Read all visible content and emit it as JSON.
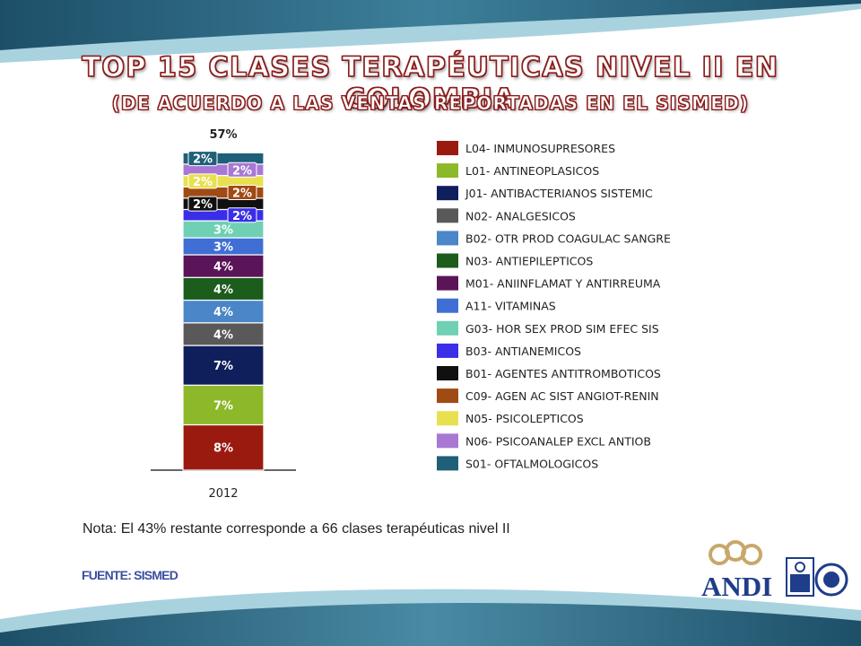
{
  "title": "TOP 15 CLASES TERAPÉUTICAS NIVEL II EN COLOMBIA",
  "subtitle": "(DE ACUERDO A LAS VENTAS REPORTADAS EN EL SISMED)",
  "note": "Nota:  El 43% restante corresponde a 66 clases terapéuticas nivel II",
  "source": "FUENTE: SISMED",
  "logo": {
    "text": "ANDI"
  },
  "colors": {
    "title_stroke": "#8c1c1c",
    "band_dark": "#2b5f78",
    "band_light": "#8fc3d4"
  },
  "chart_data": {
    "type": "bar",
    "stacked": true,
    "categories": [
      "2012"
    ],
    "total_label": "57%",
    "ylim": [
      0,
      57
    ],
    "series": [
      {
        "name": "L04- INMUNOSUPRESORES",
        "values": [
          8
        ],
        "label": "8%",
        "color": "#9b1a10"
      },
      {
        "name": "L01- ANTINEOPLASICOS",
        "values": [
          7
        ],
        "label": "7%",
        "color": "#8db82a"
      },
      {
        "name": "J01- ANTIBACTERIANOS SISTEMIC",
        "values": [
          7
        ],
        "label": "7%",
        "color": "#0f1f5c"
      },
      {
        "name": "N02- ANALGESICOS",
        "values": [
          4
        ],
        "label": "4%",
        "color": "#595959"
      },
      {
        "name": "B02- OTR PROD COAGULAC SANGRE",
        "values": [
          4
        ],
        "label": "4%",
        "color": "#4a86c8"
      },
      {
        "name": "N03- ANTIEPILEPTICOS",
        "values": [
          4
        ],
        "label": "4%",
        "color": "#1c5c1c"
      },
      {
        "name": "M01- ANIINFLAMAT Y ANTIRREUMA",
        "values": [
          4
        ],
        "label": "4%",
        "color": "#5a1458"
      },
      {
        "name": "A11- VITAMINAS",
        "values": [
          3
        ],
        "label": "3%",
        "color": "#3f6fd4"
      },
      {
        "name": "G03- HOR SEX PROD SIM EFEC SIS",
        "values": [
          3
        ],
        "label": "3%",
        "color": "#6fd0b4"
      },
      {
        "name": "B03- ANTIANEMICOS",
        "values": [
          2
        ],
        "label": "2%",
        "color": "#3a2ee8"
      },
      {
        "name": "B01- AGENTES ANTITROMBOTICOS",
        "values": [
          2
        ],
        "label": "2%",
        "color": "#101010"
      },
      {
        "name": "C09- AGEN AC SIST ANGIOT-RENIN",
        "values": [
          2
        ],
        "label": "2%",
        "color": "#a04a14"
      },
      {
        "name": "N05- PSICOLEPTICOS",
        "values": [
          2
        ],
        "label": "2%",
        "color": "#e8e050"
      },
      {
        "name": "N06- PSICOANALEP EXCL ANTIOB",
        "values": [
          2
        ],
        "label": "2%",
        "color": "#a878d4"
      },
      {
        "name": "S01- OFTALMOLOGICOS",
        "values": [
          2
        ],
        "label": "2%",
        "color": "#1f5f78"
      }
    ]
  }
}
